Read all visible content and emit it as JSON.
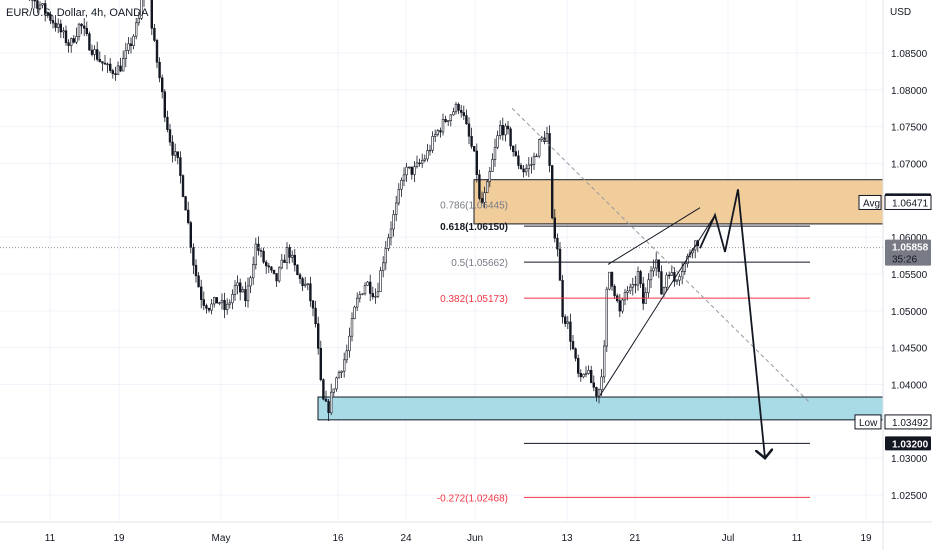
{
  "chart_data": {
    "type": "candlestick",
    "title": "EUR/U.S. Dollar, 4h, OANDA",
    "currency": "USD",
    "y_axis": {
      "ylim": [
        1.0188,
        1.0996
      ],
      "ticks": [
        "1.08500",
        "1.08000",
        "1.07500",
        "1.07000",
        "1.06000",
        "1.05500",
        "1.05000",
        "1.04500",
        "1.04000",
        "1.03000",
        "1.02500"
      ]
    },
    "x_axis": {
      "ticks": [
        "11",
        "19",
        "May",
        "16",
        "24",
        "Jun",
        "13",
        "21",
        "Jul",
        "11",
        "19"
      ]
    },
    "price_path": [
      [
        0,
        1.0985
      ],
      [
        10,
        1.0955
      ],
      [
        20,
        1.097
      ],
      [
        30,
        1.0925
      ],
      [
        40,
        1.0915
      ],
      [
        55,
        1.089
      ],
      [
        70,
        1.086
      ],
      [
        80,
        1.089
      ],
      [
        90,
        1.086
      ],
      [
        100,
        1.084
      ],
      [
        110,
        1.0825
      ],
      [
        120,
        1.083
      ],
      [
        130,
        1.086
      ],
      [
        140,
        1.09
      ],
      [
        146,
        1.099
      ],
      [
        152,
        1.088
      ],
      [
        158,
        1.083
      ],
      [
        166,
        1.076
      ],
      [
        172,
        1.072
      ],
      [
        178,
        1.07
      ],
      [
        186,
        1.064
      ],
      [
        194,
        1.056
      ],
      [
        202,
        1.0515
      ],
      [
        210,
        1.0505
      ],
      [
        218,
        1.0515
      ],
      [
        226,
        1.05
      ],
      [
        236,
        1.0535
      ],
      [
        246,
        1.0515
      ],
      [
        256,
        1.059
      ],
      [
        266,
        1.056
      ],
      [
        276,
        1.054
      ],
      [
        288,
        1.0585
      ],
      [
        298,
        1.0545
      ],
      [
        308,
        1.053
      ],
      [
        316,
        1.048
      ],
      [
        322,
        1.038
      ],
      [
        328,
        1.0365
      ],
      [
        334,
        1.04
      ],
      [
        340,
        1.042
      ],
      [
        346,
        1.044
      ],
      [
        356,
        1.051
      ],
      [
        366,
        1.054
      ],
      [
        376,
        1.052
      ],
      [
        386,
        1.059
      ],
      [
        396,
        1.064
      ],
      [
        404,
        1.069
      ],
      [
        414,
        1.069
      ],
      [
        426,
        1.071
      ],
      [
        436,
        1.074
      ],
      [
        446,
        1.076
      ],
      [
        452,
        1.077
      ],
      [
        460,
        1.078
      ],
      [
        470,
        1.073
      ],
      [
        476,
        1.07
      ],
      [
        480,
        1.064
      ],
      [
        486,
        1.066
      ],
      [
        492,
        1.07
      ],
      [
        500,
        1.075
      ],
      [
        508,
        1.074
      ],
      [
        516,
        1.0705
      ],
      [
        524,
        1.069
      ],
      [
        532,
        1.07
      ],
      [
        540,
        1.073
      ],
      [
        548,
        1.074
      ],
      [
        552,
        1.062
      ],
      [
        557,
        1.0595
      ],
      [
        562,
        1.05
      ],
      [
        568,
        1.048
      ],
      [
        574,
        1.044
      ],
      [
        580,
        1.04
      ],
      [
        586,
        1.042
      ],
      [
        592,
        1.04
      ],
      [
        598,
        1.0385
      ],
      [
        604,
        1.044
      ],
      [
        608,
        1.056
      ],
      [
        614,
        1.053
      ],
      [
        620,
        1.0495
      ],
      [
        626,
        1.053
      ],
      [
        632,
        1.0525
      ],
      [
        638,
        1.055
      ],
      [
        644,
        1.0505
      ],
      [
        650,
        1.056
      ],
      [
        656,
        1.057
      ],
      [
        662,
        1.052
      ],
      [
        668,
        1.056
      ],
      [
        674,
        1.054
      ],
      [
        680,
        1.0555
      ],
      [
        686,
        1.0565
      ],
      [
        692,
        1.059
      ],
      [
        698,
        1.0595
      ]
    ],
    "zones": [
      {
        "name": "supply-zone",
        "from": 1.0618,
        "to": 1.0678,
        "x0": 474,
        "x1": 883,
        "color": "#f2cd9c"
      },
      {
        "name": "demand-zone",
        "from": 1.0352,
        "to": 1.0383,
        "x0": 318,
        "x1": 883,
        "color": "#a9dbe6"
      }
    ],
    "fib_levels": [
      {
        "label": "0.786(1.06445)",
        "price": 1.06445,
        "color": "#787b86"
      },
      {
        "label": "0.618(1.06150)",
        "price": 1.0615,
        "color": "#131722"
      },
      {
        "label": "0.5(1.05662)",
        "price": 1.05662,
        "color": "#787b86"
      },
      {
        "label": "0.382(1.05173)",
        "price": 1.05173,
        "color": "#f23645"
      },
      {
        "label": "-0.272(1.02468)",
        "price": 1.02468,
        "color": "#f23645"
      }
    ],
    "horizontal_lines": [
      {
        "price": 1.0615,
        "color": "#131722"
      },
      {
        "price": 1.05662,
        "color": "#131722"
      },
      {
        "price": 1.05173,
        "color": "#f23645"
      },
      {
        "price": 1.032,
        "color": "#131722"
      },
      {
        "price": 1.02468,
        "color": "#f23645"
      }
    ],
    "wedge": {
      "upper": [
        [
          600,
          1.0385
        ],
        [
          715,
          1.063
        ]
      ],
      "lower": [
        [
          608,
          1.0563
        ],
        [
          700,
          1.064
        ]
      ]
    },
    "projection_path": [
      [
        700,
        1.0585
      ],
      [
        715,
        1.063
      ],
      [
        725,
        1.058
      ],
      [
        738,
        1.0665
      ],
      [
        765,
        1.03
      ]
    ],
    "trendline": {
      "from": [
        512,
        1.0775
      ],
      "to": [
        810,
        1.0375
      ]
    },
    "current_price_line": 1.05858,
    "price_labels": [
      {
        "text": "1.06500",
        "price": 1.065,
        "style": "dark"
      },
      {
        "text": "1.06471",
        "price": 1.06471,
        "style": "outline",
        "tag": "Avg"
      },
      {
        "text": "1.05858",
        "price": 1.05858,
        "style": "grey",
        "sub": "35:26"
      },
      {
        "text": "1.03492",
        "price": 1.03492,
        "style": "outline",
        "tag": "Low"
      },
      {
        "text": "1.03200",
        "price": 1.032,
        "style": "dark"
      }
    ]
  }
}
